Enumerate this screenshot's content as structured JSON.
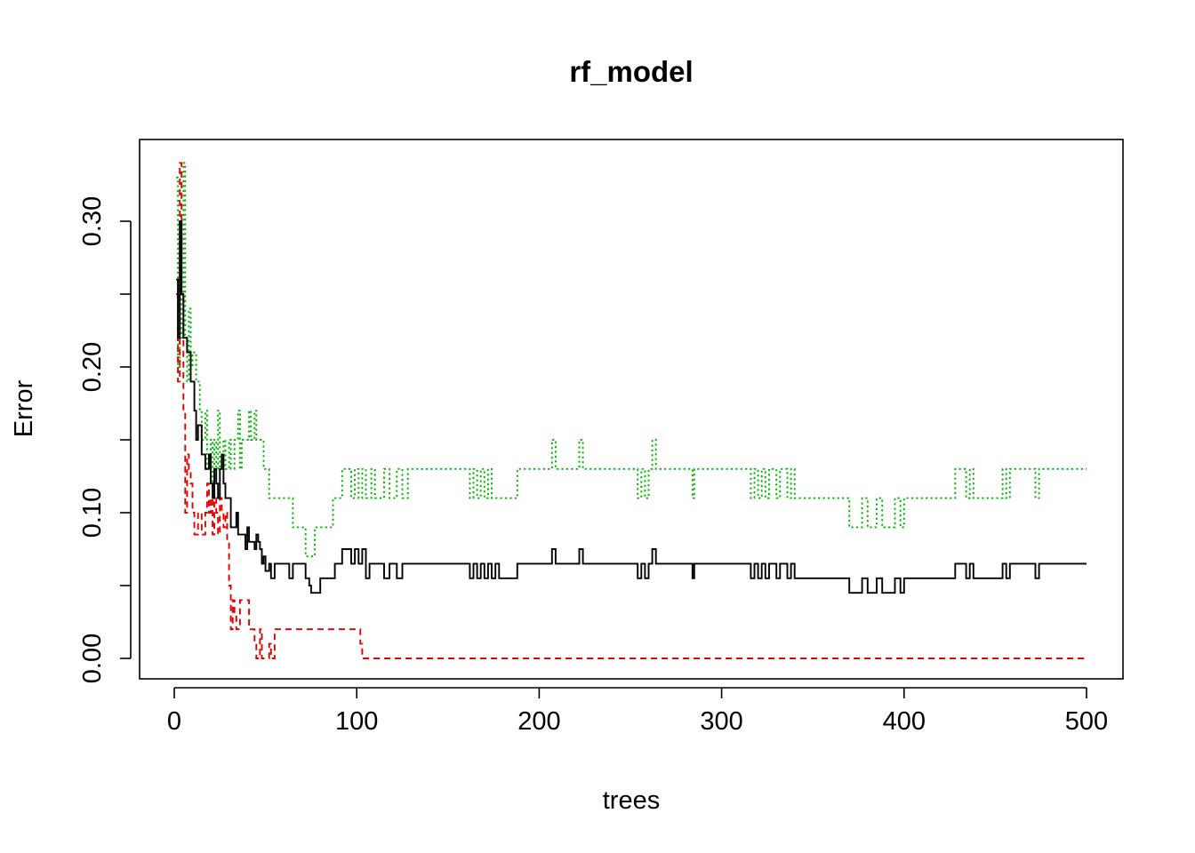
{
  "chart_data": {
    "type": "line",
    "title": "rf_model",
    "xlabel": "trees",
    "ylabel": "Error",
    "xlim": [
      0,
      500
    ],
    "ylim": [
      -0.0,
      0.35
    ],
    "x_ticks": [
      0,
      100,
      200,
      300,
      400,
      500
    ],
    "y_ticks": [
      0.0,
      0.05,
      0.1,
      0.15,
      0.2,
      0.25,
      0.3
    ],
    "y_tick_labels": [
      "0.00",
      "0.10",
      "0.20",
      "0.30"
    ],
    "y_tick_label_values": [
      0.0,
      0.1,
      0.2,
      0.3
    ],
    "grid": false,
    "legend": "none",
    "series": [
      {
        "color": "#000000",
        "dash": "solid",
        "points": [
          [
            1,
            0.26
          ],
          [
            2,
            0.22
          ],
          [
            3,
            0.3
          ],
          [
            4,
            0.25
          ],
          [
            5,
            0.22
          ],
          [
            7,
            0.21
          ],
          [
            9,
            0.19
          ],
          [
            11,
            0.17
          ],
          [
            12,
            0.15
          ],
          [
            13,
            0.16
          ],
          [
            15,
            0.14
          ],
          [
            17,
            0.13
          ],
          [
            19,
            0.14
          ],
          [
            20,
            0.12
          ],
          [
            21,
            0.11
          ],
          [
            22,
            0.13
          ],
          [
            23,
            0.12
          ],
          [
            24,
            0.11
          ],
          [
            25,
            0.13
          ],
          [
            26,
            0.14
          ],
          [
            27,
            0.12
          ],
          [
            28,
            0.11
          ],
          [
            30,
            0.11
          ],
          [
            31,
            0.09
          ],
          [
            33,
            0.09
          ],
          [
            34,
            0.1
          ],
          [
            35,
            0.085
          ],
          [
            37,
            0.085
          ],
          [
            38,
            0.085
          ],
          [
            39,
            0.075
          ],
          [
            40,
            0.09
          ],
          [
            41,
            0.08
          ],
          [
            43,
            0.08
          ],
          [
            44,
            0.075
          ],
          [
            45,
            0.085
          ],
          [
            46,
            0.08
          ],
          [
            47,
            0.075
          ],
          [
            48,
            0.065
          ],
          [
            49,
            0.07
          ],
          [
            50,
            0.06
          ],
          [
            52,
            0.065
          ],
          [
            53,
            0.055
          ],
          [
            55,
            0.065
          ],
          [
            60,
            0.065
          ],
          [
            63,
            0.055
          ],
          [
            65,
            0.065
          ],
          [
            70,
            0.065
          ],
          [
            72,
            0.055
          ],
          [
            74,
            0.05
          ],
          [
            75,
            0.045
          ],
          [
            78,
            0.045
          ],
          [
            80,
            0.055
          ],
          [
            85,
            0.055
          ],
          [
            88,
            0.065
          ],
          [
            90,
            0.065
          ],
          [
            92,
            0.075
          ],
          [
            95,
            0.075
          ],
          [
            97,
            0.065
          ],
          [
            99,
            0.075
          ],
          [
            101,
            0.065
          ],
          [
            103,
            0.075
          ],
          [
            105,
            0.055
          ],
          [
            107,
            0.065
          ],
          [
            110,
            0.065
          ],
          [
            115,
            0.055
          ],
          [
            118,
            0.065
          ],
          [
            122,
            0.055
          ],
          [
            125,
            0.065
          ],
          [
            160,
            0.065
          ],
          [
            162,
            0.055
          ],
          [
            164,
            0.065
          ],
          [
            166,
            0.055
          ],
          [
            168,
            0.065
          ],
          [
            170,
            0.055
          ],
          [
            172,
            0.065
          ],
          [
            174,
            0.055
          ],
          [
            176,
            0.065
          ],
          [
            178,
            0.055
          ],
          [
            185,
            0.055
          ],
          [
            188,
            0.065
          ],
          [
            205,
            0.065
          ],
          [
            207,
            0.075
          ],
          [
            209,
            0.065
          ],
          [
            220,
            0.065
          ],
          [
            222,
            0.075
          ],
          [
            224,
            0.065
          ],
          [
            252,
            0.065
          ],
          [
            254,
            0.055
          ],
          [
            256,
            0.065
          ],
          [
            258,
            0.055
          ],
          [
            260,
            0.065
          ],
          [
            262,
            0.075
          ],
          [
            264,
            0.065
          ],
          [
            283,
            0.065
          ],
          [
            284,
            0.055
          ],
          [
            285,
            0.065
          ],
          [
            314,
            0.065
          ],
          [
            316,
            0.055
          ],
          [
            318,
            0.065
          ],
          [
            320,
            0.055
          ],
          [
            322,
            0.065
          ],
          [
            324,
            0.055
          ],
          [
            326,
            0.065
          ],
          [
            330,
            0.055
          ],
          [
            332,
            0.065
          ],
          [
            336,
            0.055
          ],
          [
            338,
            0.065
          ],
          [
            340,
            0.055
          ],
          [
            368,
            0.055
          ],
          [
            370,
            0.045
          ],
          [
            375,
            0.045
          ],
          [
            377,
            0.055
          ],
          [
            380,
            0.045
          ],
          [
            385,
            0.055
          ],
          [
            388,
            0.045
          ],
          [
            392,
            0.045
          ],
          [
            395,
            0.055
          ],
          [
            398,
            0.045
          ],
          [
            400,
            0.055
          ],
          [
            426,
            0.055
          ],
          [
            428,
            0.065
          ],
          [
            432,
            0.065
          ],
          [
            434,
            0.055
          ],
          [
            436,
            0.065
          ],
          [
            438,
            0.055
          ],
          [
            452,
            0.055
          ],
          [
            454,
            0.065
          ],
          [
            456,
            0.055
          ],
          [
            458,
            0.065
          ],
          [
            470,
            0.065
          ],
          [
            472,
            0.055
          ],
          [
            474,
            0.065
          ],
          [
            500,
            0.065
          ]
        ]
      },
      {
        "color": "#df0000",
        "dash": "dashed",
        "points": [
          [
            1,
            0.25
          ],
          [
            2,
            0.19
          ],
          [
            3,
            0.34
          ],
          [
            4,
            0.25
          ],
          [
            5,
            0.17
          ],
          [
            6,
            0.1
          ],
          [
            7,
            0.14
          ],
          [
            8,
            0.13
          ],
          [
            9,
            0.12
          ],
          [
            10,
            0.1
          ],
          [
            11,
            0.085
          ],
          [
            13,
            0.1
          ],
          [
            15,
            0.085
          ],
          [
            17,
            0.1
          ],
          [
            18,
            0.12
          ],
          [
            19,
            0.1
          ],
          [
            20,
            0.11
          ],
          [
            21,
            0.085
          ],
          [
            22,
            0.11
          ],
          [
            23,
            0.1
          ],
          [
            24,
            0.085
          ],
          [
            25,
            0.11
          ],
          [
            26,
            0.1
          ],
          [
            27,
            0.09
          ],
          [
            28,
            0.1
          ],
          [
            29,
            0.08
          ],
          [
            30,
            0.05
          ],
          [
            31,
            0.02
          ],
          [
            32,
            0.04
          ],
          [
            33,
            0.03
          ],
          [
            34,
            0.02
          ],
          [
            36,
            0.04
          ],
          [
            40,
            0.04
          ],
          [
            41,
            0.02
          ],
          [
            44,
            0.01
          ],
          [
            45,
            0.0
          ],
          [
            47,
            0.02
          ],
          [
            48,
            0.0
          ],
          [
            51,
            0.0
          ],
          [
            52,
            0.01
          ],
          [
            53,
            0.0
          ],
          [
            55,
            0.02
          ],
          [
            100,
            0.02
          ],
          [
            102,
            0.01
          ],
          [
            103,
            0.0
          ],
          [
            500,
            0.0
          ]
        ]
      },
      {
        "color": "#00b400",
        "dash": "dotted",
        "points": [
          [
            1,
            0.33
          ],
          [
            2,
            0.2
          ],
          [
            3,
            0.29
          ],
          [
            4,
            0.22
          ],
          [
            5,
            0.34
          ],
          [
            6,
            0.22
          ],
          [
            7,
            0.19
          ],
          [
            8,
            0.24
          ],
          [
            9,
            0.2
          ],
          [
            10,
            0.21
          ],
          [
            12,
            0.19
          ],
          [
            14,
            0.17
          ],
          [
            15,
            0.15
          ],
          [
            17,
            0.17
          ],
          [
            18,
            0.13
          ],
          [
            20,
            0.15
          ],
          [
            21,
            0.11
          ],
          [
            22,
            0.15
          ],
          [
            23,
            0.13
          ],
          [
            24,
            0.17
          ],
          [
            25,
            0.13
          ],
          [
            27,
            0.15
          ],
          [
            28,
            0.13
          ],
          [
            30,
            0.15
          ],
          [
            31,
            0.13
          ],
          [
            33,
            0.15
          ],
          [
            35,
            0.17
          ],
          [
            36,
            0.13
          ],
          [
            37,
            0.15
          ],
          [
            40,
            0.15
          ],
          [
            41,
            0.17
          ],
          [
            42,
            0.15
          ],
          [
            44,
            0.17
          ],
          [
            45,
            0.15
          ],
          [
            47,
            0.15
          ],
          [
            49,
            0.13
          ],
          [
            50,
            0.13
          ],
          [
            52,
            0.11
          ],
          [
            55,
            0.11
          ],
          [
            63,
            0.11
          ],
          [
            65,
            0.09
          ],
          [
            70,
            0.09
          ],
          [
            72,
            0.07
          ],
          [
            75,
            0.07
          ],
          [
            77,
            0.09
          ],
          [
            85,
            0.09
          ],
          [
            87,
            0.11
          ],
          [
            88,
            0.11
          ],
          [
            90,
            0.11
          ],
          [
            92,
            0.13
          ],
          [
            95,
            0.13
          ],
          [
            97,
            0.11
          ],
          [
            99,
            0.13
          ],
          [
            101,
            0.11
          ],
          [
            103,
            0.13
          ],
          [
            105,
            0.11
          ],
          [
            108,
            0.13
          ],
          [
            110,
            0.11
          ],
          [
            115,
            0.13
          ],
          [
            118,
            0.11
          ],
          [
            122,
            0.13
          ],
          [
            125,
            0.11
          ],
          [
            128,
            0.13
          ],
          [
            160,
            0.13
          ],
          [
            162,
            0.11
          ],
          [
            164,
            0.13
          ],
          [
            166,
            0.11
          ],
          [
            168,
            0.13
          ],
          [
            170,
            0.11
          ],
          [
            172,
            0.13
          ],
          [
            174,
            0.11
          ],
          [
            176,
            0.11
          ],
          [
            185,
            0.11
          ],
          [
            188,
            0.13
          ],
          [
            205,
            0.13
          ],
          [
            207,
            0.15
          ],
          [
            209,
            0.13
          ],
          [
            220,
            0.13
          ],
          [
            222,
            0.15
          ],
          [
            224,
            0.13
          ],
          [
            252,
            0.13
          ],
          [
            254,
            0.11
          ],
          [
            256,
            0.13
          ],
          [
            258,
            0.11
          ],
          [
            260,
            0.13
          ],
          [
            262,
            0.15
          ],
          [
            264,
            0.13
          ],
          [
            283,
            0.13
          ],
          [
            284,
            0.11
          ],
          [
            285,
            0.13
          ],
          [
            314,
            0.13
          ],
          [
            316,
            0.11
          ],
          [
            318,
            0.13
          ],
          [
            320,
            0.11
          ],
          [
            322,
            0.13
          ],
          [
            324,
            0.11
          ],
          [
            326,
            0.13
          ],
          [
            330,
            0.11
          ],
          [
            332,
            0.13
          ],
          [
            336,
            0.11
          ],
          [
            338,
            0.13
          ],
          [
            340,
            0.11
          ],
          [
            368,
            0.11
          ],
          [
            370,
            0.09
          ],
          [
            375,
            0.09
          ],
          [
            377,
            0.11
          ],
          [
            380,
            0.09
          ],
          [
            385,
            0.11
          ],
          [
            388,
            0.09
          ],
          [
            392,
            0.09
          ],
          [
            395,
            0.11
          ],
          [
            398,
            0.09
          ],
          [
            400,
            0.11
          ],
          [
            426,
            0.11
          ],
          [
            428,
            0.13
          ],
          [
            432,
            0.13
          ],
          [
            434,
            0.11
          ],
          [
            436,
            0.13
          ],
          [
            438,
            0.11
          ],
          [
            452,
            0.11
          ],
          [
            454,
            0.13
          ],
          [
            456,
            0.11
          ],
          [
            458,
            0.13
          ],
          [
            470,
            0.13
          ],
          [
            472,
            0.11
          ],
          [
            474,
            0.13
          ],
          [
            500,
            0.13
          ]
        ]
      }
    ]
  }
}
